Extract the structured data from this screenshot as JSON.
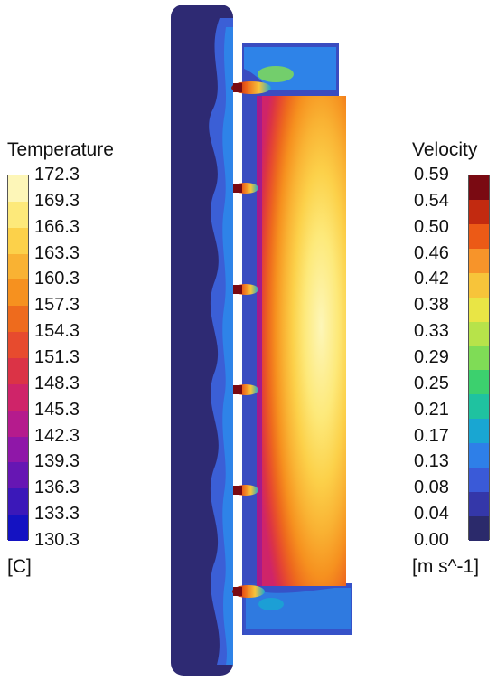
{
  "temperature_legend": {
    "title": "Temperature",
    "unit": "[C]",
    "ticks": [
      "172.3",
      "169.3",
      "166.3",
      "163.3",
      "160.3",
      "157.3",
      "154.3",
      "151.3",
      "148.3",
      "145.3",
      "142.3",
      "139.3",
      "136.3",
      "133.3",
      "130.3"
    ],
    "colors": [
      "#fdf6b8",
      "#fde97a",
      "#fcd14a",
      "#f9b233",
      "#f6911f",
      "#ee6b1d",
      "#e74b2e",
      "#db3346",
      "#cf2469",
      "#b51b8d",
      "#8f17a8",
      "#6616b3",
      "#3b18b9",
      "#1412c2"
    ]
  },
  "velocity_legend": {
    "title": "Velocity",
    "unit": "[m s^-1]",
    "ticks": [
      "0.59",
      "0.54",
      "0.50",
      "0.46",
      "0.42",
      "0.38",
      "0.33",
      "0.29",
      "0.25",
      "0.21",
      "0.17",
      "0.13",
      "0.08",
      "0.04",
      "0.00"
    ],
    "colors": [
      "#7a0a12",
      "#c22a10",
      "#ec5a16",
      "#f7942a",
      "#f7c43a",
      "#e9e545",
      "#b7e34a",
      "#7fdc56",
      "#3cd06e",
      "#1fc2a0",
      "#19a6d2",
      "#2e7fe8",
      "#3a5ad8",
      "#3437a9",
      "#2b2a6b"
    ]
  }
}
